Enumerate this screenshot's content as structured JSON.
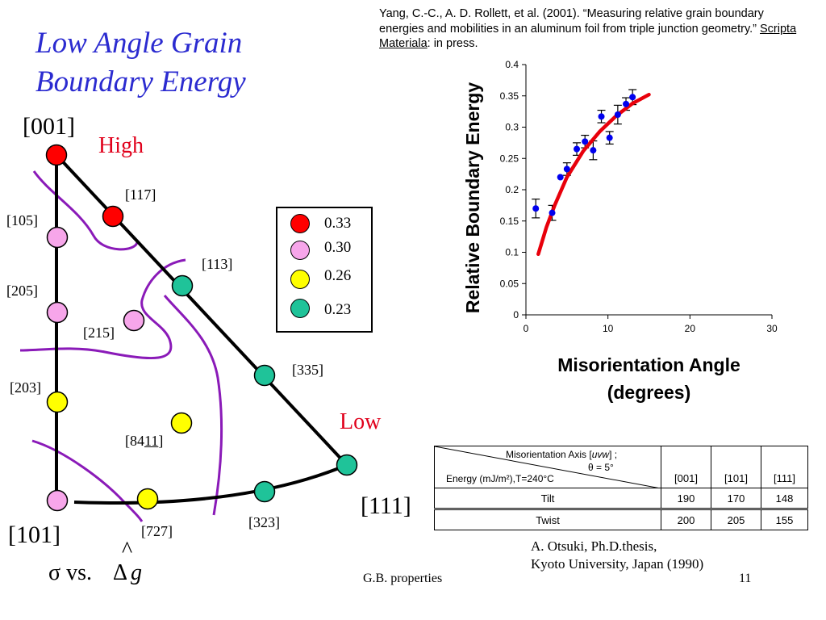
{
  "slide": {
    "title_line1": "Low Angle Grain",
    "title_line2": "Boundary Energy",
    "citation_part1": "Yang, C.-C., A. D. Rollett, et al. (2001). “Measuring relative grain boundary energies and mobilities in an aluminum foil from triple junction geometry.” ",
    "citation_journal": "Scripta Materiala",
    "citation_part2": ": in press.",
    "footer_center": "G.B. properties",
    "page_number": "11",
    "sigma_formula": "σ vs.",
    "delta_symbol": "Δ",
    "g_symbol": "g",
    "hat_symbol": "^",
    "source_line1": "A. Otsuki, Ph.D.thesis,",
    "source_line2": "Kyoto University, Japan (1990)"
  },
  "triangle": {
    "corner_001": "[001]",
    "corner_101": "[101]",
    "corner_111": "[111]",
    "label_high": "High",
    "label_low": "Low",
    "high_color": "#e0001b",
    "label_117": "[117]",
    "label_105": "[105]",
    "label_205": "[205]",
    "label_215": "[215]",
    "label_203": "[203]",
    "label_84_11_prefix": "[84",
    "label_84_11_under": "11",
    "label_84_11_suffix": "]",
    "label_727": "[727]",
    "label_113": "[113]",
    "label_335": "[335]",
    "label_323": "[323]"
  },
  "legend": {
    "items": [
      {
        "value": "0.33",
        "color": "#ff0000"
      },
      {
        "value": "0.30",
        "color": "#f7a6ea"
      },
      {
        "value": "0.26",
        "color": "#ffff00"
      },
      {
        "value": "0.23",
        "color": "#1fc399"
      }
    ]
  },
  "chart_data": {
    "type": "scatter",
    "title": "",
    "xlabel": "Misorientation Angle (degrees)",
    "ylabel": "Relative Boundary Energy",
    "xlim": [
      0,
      30
    ],
    "ylim": [
      0,
      0.4
    ],
    "xticks": [
      "0",
      "10",
      "20",
      "30"
    ],
    "yticks": [
      "0",
      "0.05",
      "0.1",
      "0.15",
      "0.2",
      "0.25",
      "0.3",
      "0.35",
      "0.4"
    ],
    "points": [
      {
        "x": 1.2,
        "y": 0.17,
        "err": 0.015
      },
      {
        "x": 3.2,
        "y": 0.163,
        "err": 0.012
      },
      {
        "x": 4.2,
        "y": 0.22,
        "err": 0.0
      },
      {
        "x": 5.0,
        "y": 0.233,
        "err": 0.01
      },
      {
        "x": 6.2,
        "y": 0.265,
        "err": 0.01
      },
      {
        "x": 7.2,
        "y": 0.277,
        "err": 0.01
      },
      {
        "x": 8.2,
        "y": 0.263,
        "err": 0.015
      },
      {
        "x": 9.2,
        "y": 0.317,
        "err": 0.01
      },
      {
        "x": 10.2,
        "y": 0.283,
        "err": 0.01
      },
      {
        "x": 11.2,
        "y": 0.32,
        "err": 0.015
      },
      {
        "x": 12.2,
        "y": 0.337,
        "err": 0.01
      },
      {
        "x": 13.0,
        "y": 0.348,
        "err": 0.012
      }
    ],
    "fit_curve": [
      {
        "x": 1.5,
        "y": 0.097
      },
      {
        "x": 2.5,
        "y": 0.14
      },
      {
        "x": 3.5,
        "y": 0.175
      },
      {
        "x": 5.0,
        "y": 0.22
      },
      {
        "x": 7.0,
        "y": 0.262
      },
      {
        "x": 9.0,
        "y": 0.293
      },
      {
        "x": 11.0,
        "y": 0.318
      },
      {
        "x": 13.0,
        "y": 0.338
      },
      {
        "x": 15.0,
        "y": 0.352
      }
    ],
    "point_color": "#0000ee",
    "curve_color": "#e8000b"
  },
  "table": {
    "header_axis": "Misorientation Axis [",
    "header_axis_uvw": "uvw",
    "header_axis_end": "] ;",
    "header_theta": "θ = 5°",
    "header_energy": "Energy (mJ/m²),T=240°C",
    "columns": [
      "[001]",
      "[101]",
      "[111]"
    ],
    "rows": [
      {
        "label": "Tilt",
        "values": [
          "190",
          "170",
          "148"
        ]
      },
      {
        "label": "Twist",
        "values": [
          "200",
          "205",
          "155"
        ]
      }
    ]
  }
}
